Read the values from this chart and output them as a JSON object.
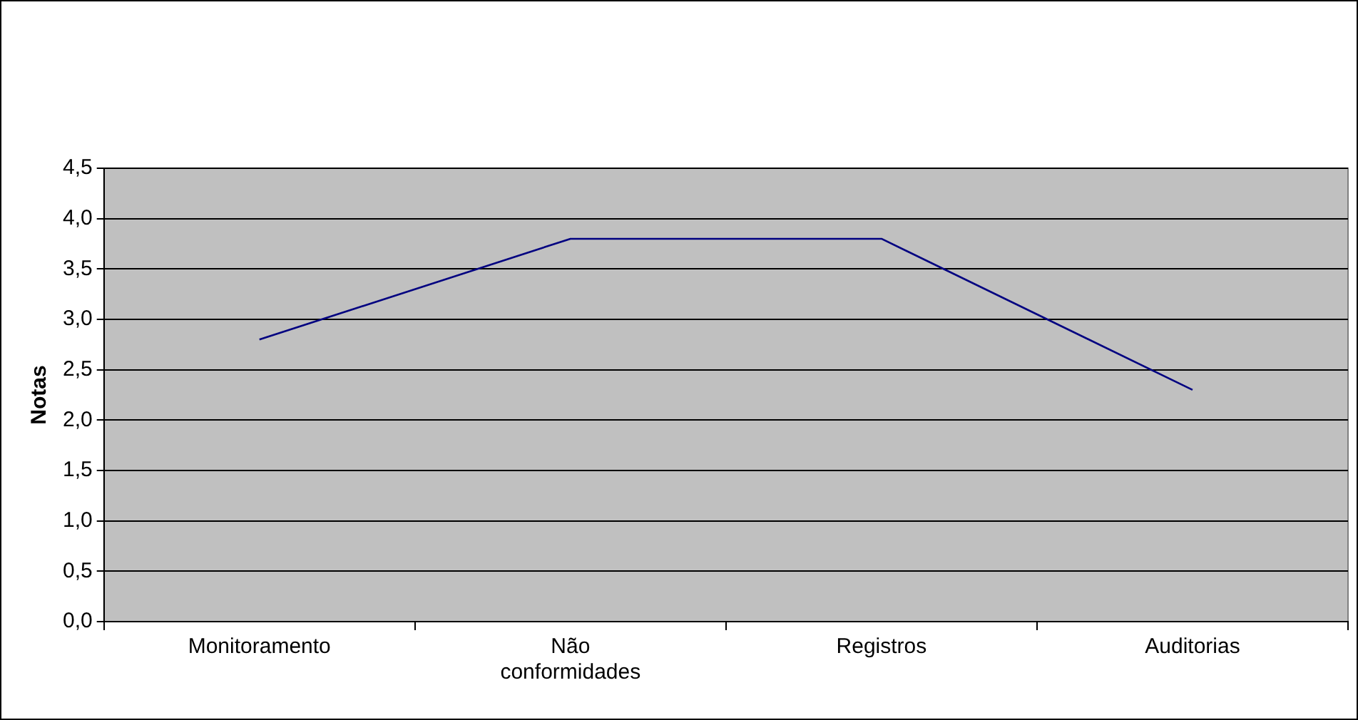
{
  "chart_data": {
    "type": "line",
    "ylabel": "Notas",
    "categories": [
      "Monitoramento",
      "Não conformidades",
      "Registros",
      "Auditorias"
    ],
    "series": [
      {
        "color": "#000080",
        "values": [
          2.8,
          3.8,
          3.8,
          2.3
        ]
      }
    ],
    "ylim": [
      0,
      4.5
    ],
    "yticks": [
      {
        "value": 0,
        "label": "0,0"
      },
      {
        "value": 0.5,
        "label": "0,5"
      },
      {
        "value": 1,
        "label": "1,0"
      },
      {
        "value": 1.5,
        "label": "1,5"
      },
      {
        "value": 2,
        "label": "2,0"
      },
      {
        "value": 2.5,
        "label": "2,5"
      },
      {
        "value": 3,
        "label": "3,0"
      },
      {
        "value": 3.5,
        "label": "3,5"
      },
      {
        "value": 4,
        "label": "4,0"
      },
      {
        "value": 4.5,
        "label": "4,5"
      }
    ],
    "grid": "y",
    "legend": false,
    "marker": "none",
    "line_style": "solid"
  }
}
